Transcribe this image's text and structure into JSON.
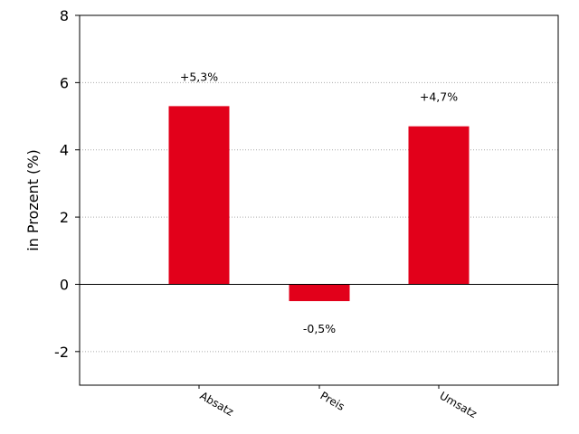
{
  "chart_data": {
    "type": "bar",
    "categories": [
      "Absatz",
      "Preis",
      "Umsatz"
    ],
    "values": [
      5.3,
      -0.5,
      4.7
    ],
    "data_labels": [
      "+5,3%",
      "-0,5%",
      "+4,7%"
    ],
    "title": "",
    "xlabel": "",
    "ylabel": "in Prozent (%)",
    "ylim": [
      -3,
      8
    ],
    "yticks": [
      -2,
      0,
      2,
      4,
      6,
      8
    ],
    "ytick_labels": [
      "-2",
      "0",
      "2",
      "4",
      "6",
      "8"
    ],
    "grid": "horizontal dotted",
    "bar_color": "#e2001a"
  }
}
